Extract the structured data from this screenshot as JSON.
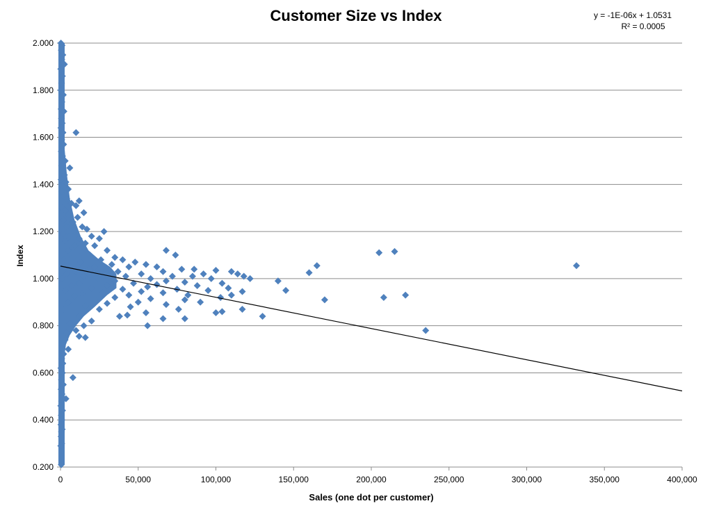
{
  "chart_data": {
    "type": "scatter",
    "title": "Customer Size vs Index",
    "xlabel": "Sales (one dot per customer)",
    "ylabel": "Index",
    "xlim": [
      0,
      400000
    ],
    "ylim": [
      0.2,
      2.0
    ],
    "x_ticks": [
      0,
      50000,
      100000,
      150000,
      200000,
      250000,
      300000,
      350000,
      400000
    ],
    "x_tick_labels": [
      "0",
      "50,000",
      "100,000",
      "150,000",
      "200,000",
      "250,000",
      "300,000",
      "350,000",
      "400,000"
    ],
    "y_ticks": [
      0.2,
      0.4,
      0.6,
      0.8,
      1.0,
      1.2,
      1.4,
      1.6,
      1.8,
      2.0
    ],
    "y_tick_labels": [
      "0.200",
      "0.400",
      "0.600",
      "0.800",
      "1.000",
      "1.200",
      "1.400",
      "1.600",
      "1.800",
      "2.000"
    ],
    "grid": "horizontal",
    "marker_color": "#4F81BD",
    "trendline": {
      "type": "linear",
      "slope": -1.325e-06,
      "intercept": 1.0531,
      "equation": "y = -1E-06x + 1.0531",
      "r_squared": "R² = 0.0005",
      "color": "#000000"
    },
    "series": [
      {
        "values": [
          [
            300,
            2.0
          ],
          [
            1000,
            1.99
          ],
          [
            500,
            1.97
          ],
          [
            1500,
            1.95
          ],
          [
            800,
            1.93
          ],
          [
            2500,
            1.91
          ],
          [
            200,
            1.89
          ],
          [
            1200,
            1.86
          ],
          [
            700,
            1.83
          ],
          [
            300,
            1.8
          ],
          [
            1800,
            1.78
          ],
          [
            900,
            1.75
          ],
          [
            400,
            1.72
          ],
          [
            2200,
            1.71
          ],
          [
            600,
            1.68
          ],
          [
            1100,
            1.66
          ],
          [
            300,
            1.64
          ],
          [
            1600,
            1.62
          ],
          [
            10000,
            1.62
          ],
          [
            800,
            1.59
          ],
          [
            2000,
            1.57
          ],
          [
            500,
            1.54
          ],
          [
            1300,
            1.52
          ],
          [
            3000,
            1.5
          ],
          [
            700,
            1.48
          ],
          [
            6000,
            1.47
          ],
          [
            1000,
            1.46
          ],
          [
            2500,
            1.44
          ],
          [
            400,
            1.42
          ],
          [
            3500,
            1.41
          ],
          [
            1500,
            1.39
          ],
          [
            5000,
            1.38
          ],
          [
            800,
            1.37
          ],
          [
            2000,
            1.35
          ],
          [
            4000,
            1.34
          ],
          [
            12000,
            1.33
          ],
          [
            7000,
            1.32
          ],
          [
            10000,
            1.31
          ],
          [
            1000,
            1.3
          ],
          [
            3000,
            1.29
          ],
          [
            15000,
            1.28
          ],
          [
            5000,
            1.27
          ],
          [
            11000,
            1.26
          ],
          [
            2000,
            1.25
          ],
          [
            8000,
            1.24
          ],
          [
            14000,
            1.22
          ],
          [
            4000,
            1.22
          ],
          [
            17000,
            1.21
          ],
          [
            28000,
            1.2
          ],
          [
            9000,
            1.2
          ],
          [
            1500,
            1.19
          ],
          [
            6000,
            1.18
          ],
          [
            20000,
            1.18
          ],
          [
            12000,
            1.17
          ],
          [
            25000,
            1.17
          ],
          [
            3000,
            1.16
          ],
          [
            16000,
            1.15
          ],
          [
            9000,
            1.14
          ],
          [
            22000,
            1.14
          ],
          [
            68000,
            1.12
          ],
          [
            5000,
            1.12
          ],
          [
            30000,
            1.12
          ],
          [
            14000,
            1.11
          ],
          [
            74000,
            1.1
          ],
          [
            205000,
            1.11
          ],
          [
            215000,
            1.115
          ],
          [
            19000,
            1.1
          ],
          [
            35000,
            1.09
          ],
          [
            8000,
            1.09
          ],
          [
            26000,
            1.08
          ],
          [
            40000,
            1.08
          ],
          [
            2000,
            1.08
          ],
          [
            13000,
            1.07
          ],
          [
            48000,
            1.07
          ],
          [
            33000,
            1.06
          ],
          [
            55000,
            1.06
          ],
          [
            165000,
            1.055
          ],
          [
            332000,
            1.055
          ],
          [
            6000,
            1.05
          ],
          [
            22000,
            1.05
          ],
          [
            44000,
            1.05
          ],
          [
            62000,
            1.05
          ],
          [
            78000,
            1.04
          ],
          [
            86000,
            1.04
          ],
          [
            18000,
            1.04
          ],
          [
            37000,
            1.03
          ],
          [
            100000,
            1.035
          ],
          [
            110000,
            1.03
          ],
          [
            66000,
            1.03
          ],
          [
            10000,
            1.03
          ],
          [
            160000,
            1.025
          ],
          [
            28000,
            1.02
          ],
          [
            52000,
            1.02
          ],
          [
            92000,
            1.02
          ],
          [
            114000,
            1.02
          ],
          [
            4000,
            1.02
          ],
          [
            72000,
            1.01
          ],
          [
            118000,
            1.01
          ],
          [
            42000,
            1.01
          ],
          [
            15000,
            1.01
          ],
          [
            85000,
            1.01
          ],
          [
            58000,
            1.0
          ],
          [
            122000,
            1.0
          ],
          [
            24000,
            1.0
          ],
          [
            97000,
            1.0
          ],
          [
            1000,
            1.0
          ],
          [
            140000,
            0.99
          ],
          [
            35000,
            0.99
          ],
          [
            68000,
            0.99
          ],
          [
            80000,
            0.985
          ],
          [
            12000,
            0.98
          ],
          [
            47000,
            0.98
          ],
          [
            104000,
            0.98
          ],
          [
            62000,
            0.975
          ],
          [
            30000,
            0.97
          ],
          [
            7000,
            0.97
          ],
          [
            88000,
            0.97
          ],
          [
            56000,
            0.965
          ],
          [
            108000,
            0.96
          ],
          [
            20000,
            0.96
          ],
          [
            40000,
            0.955
          ],
          [
            75000,
            0.955
          ],
          [
            3000,
            0.95
          ],
          [
            145000,
            0.95
          ],
          [
            95000,
            0.95
          ],
          [
            52000,
            0.945
          ],
          [
            117000,
            0.945
          ],
          [
            27000,
            0.94
          ],
          [
            66000,
            0.94
          ],
          [
            14000,
            0.935
          ],
          [
            82000,
            0.93
          ],
          [
            222000,
            0.93
          ],
          [
            44000,
            0.93
          ],
          [
            110000,
            0.93
          ],
          [
            9000,
            0.925
          ],
          [
            35000,
            0.92
          ],
          [
            103000,
            0.92
          ],
          [
            208000,
            0.92
          ],
          [
            58000,
            0.915
          ],
          [
            80000,
            0.91
          ],
          [
            170000,
            0.91
          ],
          [
            22000,
            0.91
          ],
          [
            50000,
            0.9
          ],
          [
            90000,
            0.9
          ],
          [
            5000,
            0.9
          ],
          [
            30000,
            0.895
          ],
          [
            68000,
            0.89
          ],
          [
            16000,
            0.885
          ],
          [
            45000,
            0.88
          ],
          [
            76000,
            0.87
          ],
          [
            117000,
            0.87
          ],
          [
            25000,
            0.87
          ],
          [
            2000,
            0.87
          ],
          [
            100000,
            0.855
          ],
          [
            104000,
            0.86
          ],
          [
            55000,
            0.855
          ],
          [
            38000,
            0.84
          ],
          [
            43000,
            0.845
          ],
          [
            130000,
            0.84
          ],
          [
            12000,
            0.84
          ],
          [
            66000,
            0.83
          ],
          [
            80000,
            0.83
          ],
          [
            20000,
            0.82
          ],
          [
            6000,
            0.81
          ],
          [
            56000,
            0.8
          ],
          [
            15000,
            0.8
          ],
          [
            235000,
            0.78
          ],
          [
            10000,
            0.78
          ],
          [
            4000,
            0.77
          ],
          [
            12000,
            0.755
          ],
          [
            16000,
            0.75
          ],
          [
            3000,
            0.74
          ],
          [
            1000,
            0.72
          ],
          [
            5000,
            0.7
          ],
          [
            2000,
            0.68
          ],
          [
            800,
            0.66
          ],
          [
            1500,
            0.64
          ],
          [
            300,
            0.62
          ],
          [
            1200,
            0.6
          ],
          [
            8000,
            0.58
          ],
          [
            600,
            0.57
          ],
          [
            1800,
            0.55
          ],
          [
            400,
            0.53
          ],
          [
            1000,
            0.51
          ],
          [
            3500,
            0.49
          ],
          [
            700,
            0.48
          ],
          [
            200,
            0.46
          ],
          [
            1300,
            0.44
          ],
          [
            500,
            0.42
          ],
          [
            900,
            0.4
          ],
          [
            300,
            0.38
          ],
          [
            1100,
            0.36
          ],
          [
            600,
            0.35
          ],
          [
            400,
            0.33
          ],
          [
            800,
            0.3
          ],
          [
            200,
            0.29
          ],
          [
            500,
            0.21
          ]
        ]
      }
    ]
  }
}
